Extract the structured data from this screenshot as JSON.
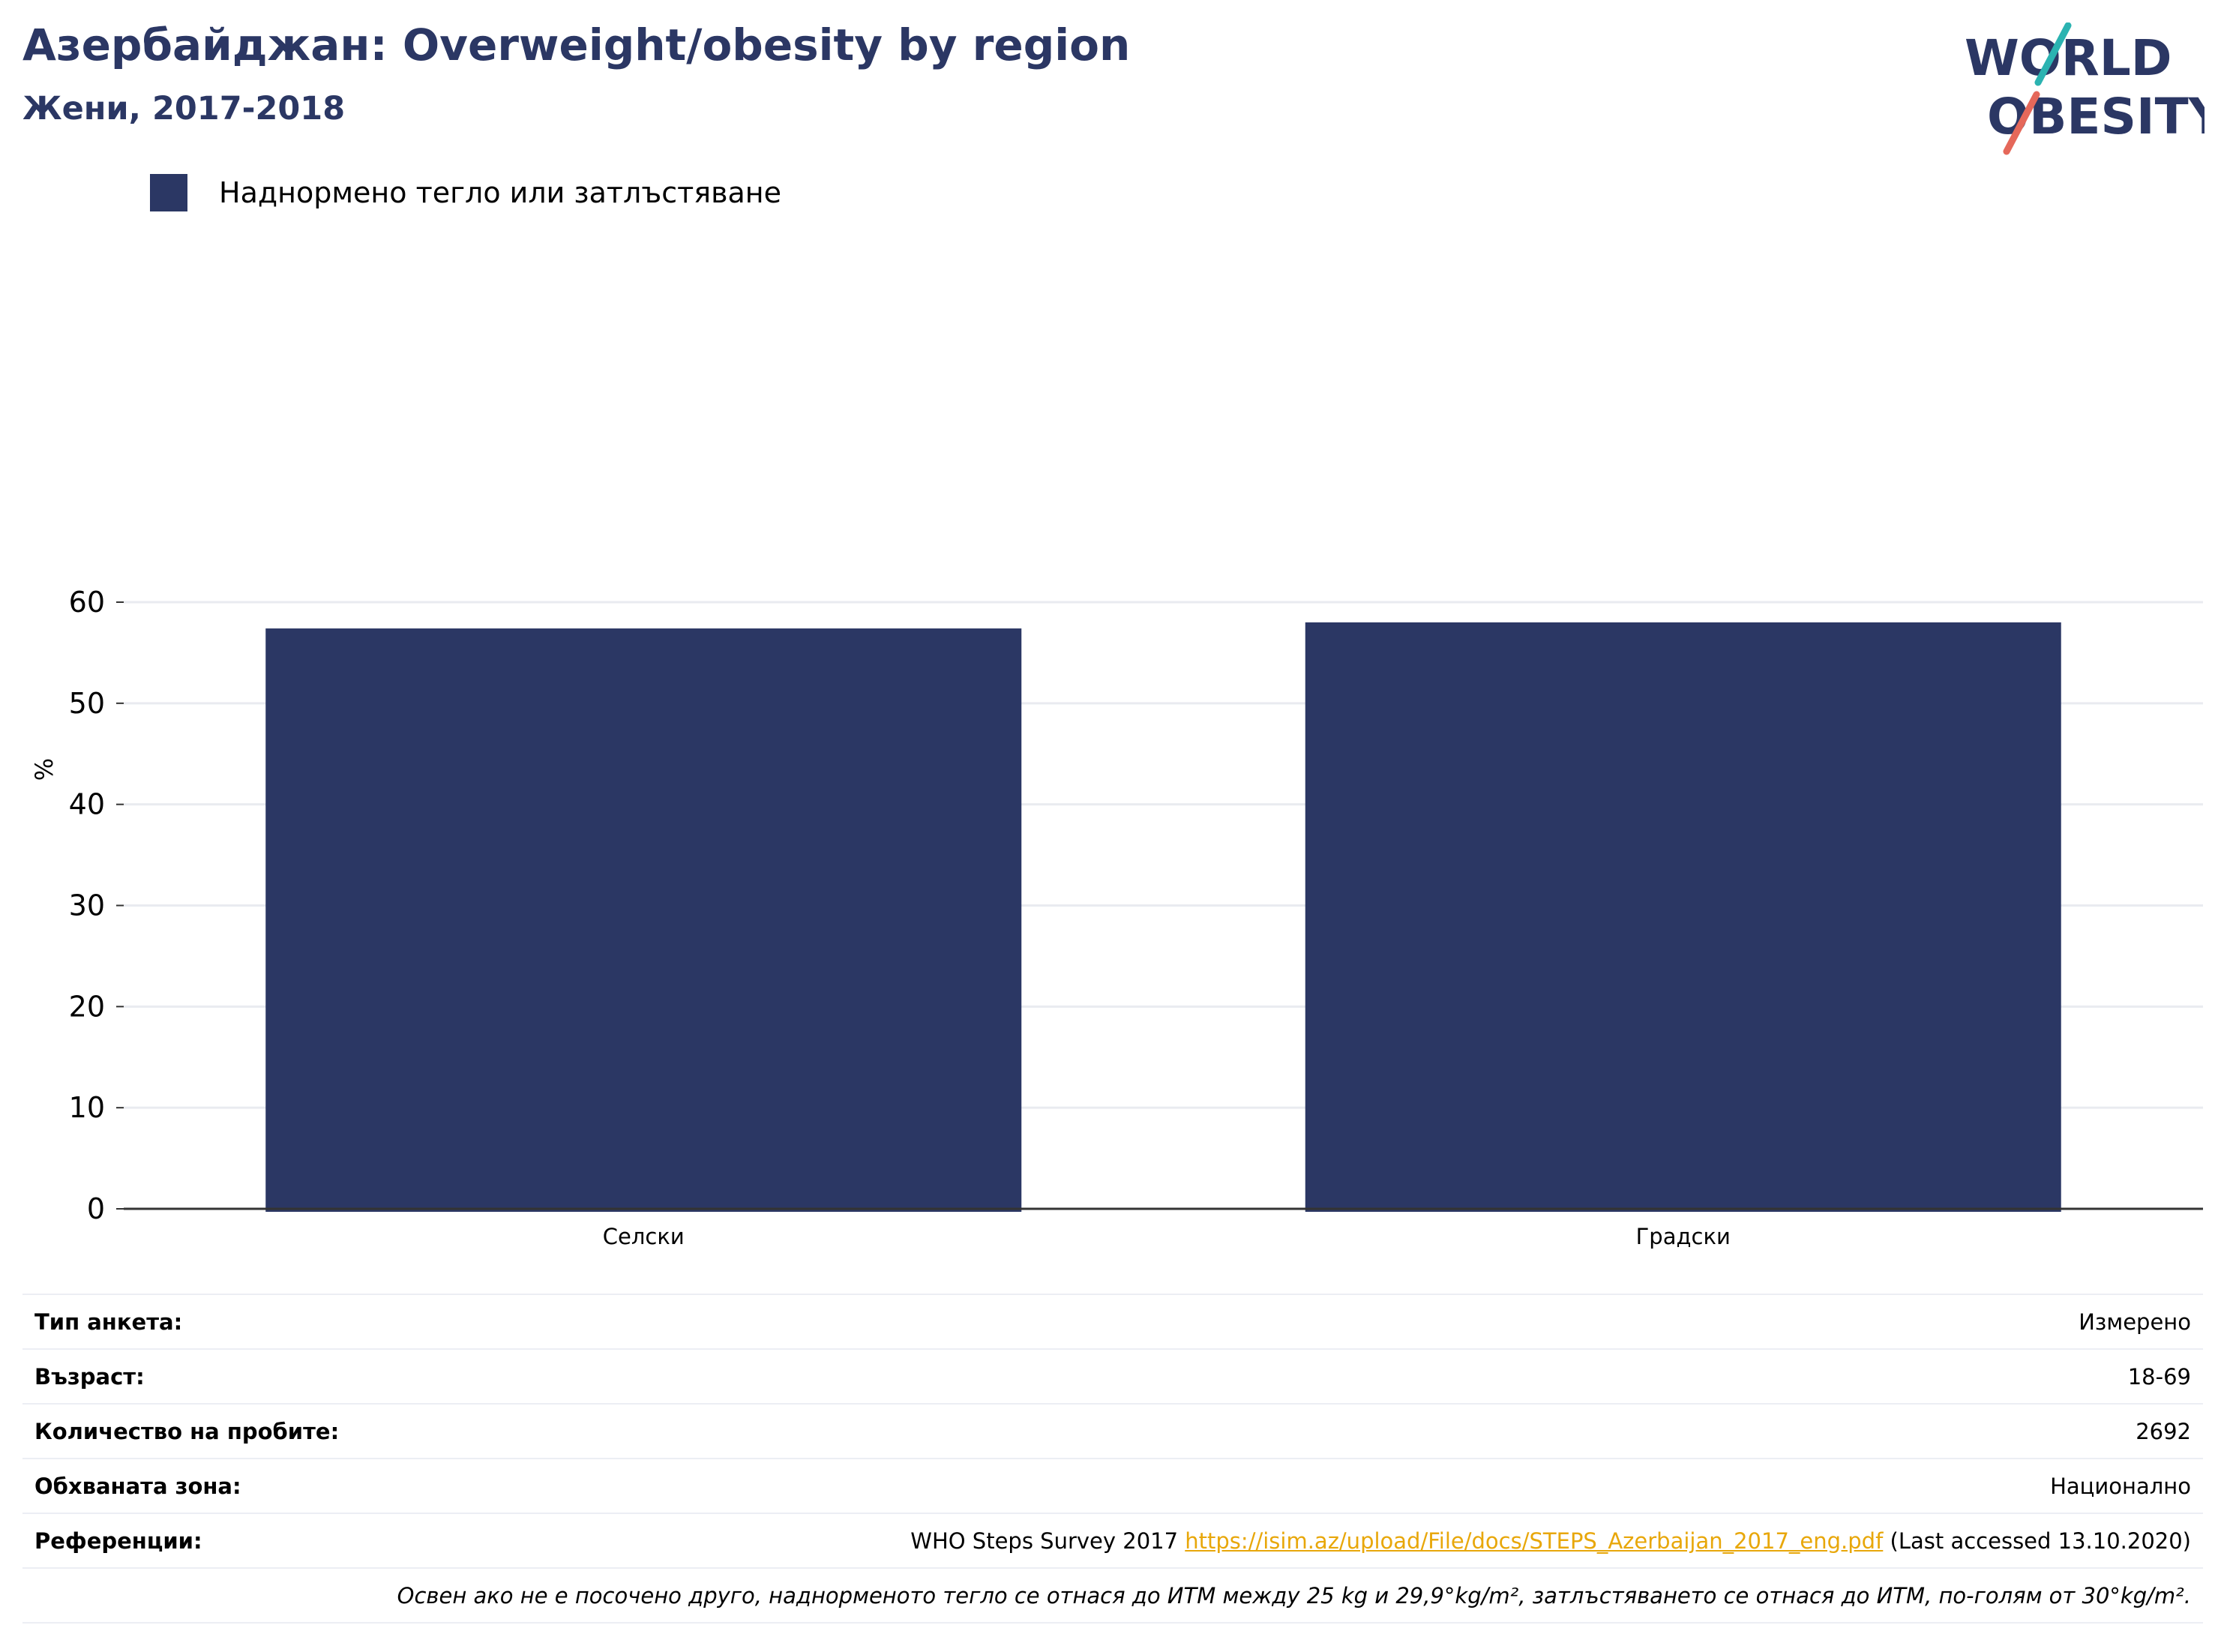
{
  "header": {
    "title": "Азербайджан: Overweight/obesity by region",
    "subtitle": "Жени, 2017-2018"
  },
  "logo": {
    "line1": "WORLD",
    "line2": "OBESITY",
    "colors": {
      "navy": "#2b3764",
      "teal": "#2bb3b1",
      "coral": "#e5685a"
    }
  },
  "legend": {
    "label": "Наднормено тегло или затлъстяване",
    "color": "#2b3764"
  },
  "chart_data": {
    "type": "bar",
    "categories": [
      "Селски",
      "Градски"
    ],
    "series": [
      {
        "name": "Наднормено тегло или затлъстяване",
        "values": [
          57.4,
          58.0
        ],
        "color": "#2b3764"
      }
    ],
    "ylabel": "%",
    "yticks": [
      0,
      10,
      20,
      30,
      40,
      50,
      60
    ],
    "ylim": [
      0,
      63
    ],
    "grid": true
  },
  "info": {
    "survey_type_label": "Тип анкета:",
    "survey_type_value": "Измерено",
    "age_label": "Възраст:",
    "age_value": "18-69",
    "sample_label": "Количество на пробите:",
    "sample_value": "2692",
    "coverage_label": "Обхваната зона:",
    "coverage_value": "Национално",
    "refs_label": "Референции:",
    "refs_prefix": "WHO Steps Survey 2017 ",
    "refs_link": "https://isim.az/upload/File/docs/STEPS_Azerbaijan_2017_eng.pdf",
    "refs_suffix": " (Last accessed 13.10.2020)",
    "footnote": "Освен ако не е посочено друго, наднорменото тегло се отнася до ИТМ между 25 kg и 29,9°kg/m², затлъстяването се отнася до ИТМ, по-голям от 30°kg/m²."
  }
}
